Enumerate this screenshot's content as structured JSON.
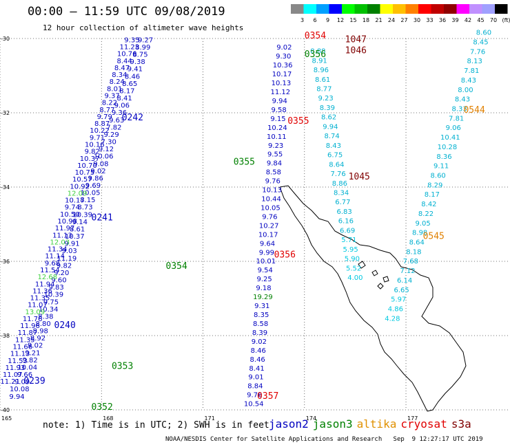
{
  "header": {
    "title": "00:00 – 11:59 UTC 09/08/2019",
    "subtitle": "12 hour collection of altimeter wave heights"
  },
  "colorbar": {
    "ticks": [
      "3",
      "6",
      "9",
      "12",
      "15",
      "18",
      "21",
      "24",
      "27",
      "30",
      "33",
      "36",
      "39",
      "42",
      "45",
      "70",
      "(ft)"
    ],
    "colors": [
      "#888888",
      "#00ffff",
      "#00a0ff",
      "#0000ff",
      "#00ff00",
      "#00c000",
      "#008000",
      "#ffff00",
      "#ffc000",
      "#ff8000",
      "#ff0000",
      "#c00000",
      "#900000",
      "#ff00ff",
      "#c090ff",
      "#a0a0ff",
      "#000000"
    ]
  },
  "axes": {
    "lat_labels": [
      "-30",
      "-32",
      "-34",
      "-36",
      "-38",
      "-40"
    ],
    "lon_labels": [
      "165",
      "168",
      "171",
      "174",
      "177"
    ]
  },
  "passes": [
    {
      "label": "0239",
      "color": "#0000c0",
      "lon": 165.7,
      "lat": -39.3
    },
    {
      "label": "0240",
      "color": "#0000c0",
      "lon": 166.6,
      "lat": -37.8
    },
    {
      "label": "0241",
      "color": "#0000c0",
      "lon": 167.7,
      "lat": -34.9
    },
    {
      "label": "0242",
      "color": "#0000c0",
      "lon": 168.6,
      "lat": -32.2
    },
    {
      "label": "0352",
      "color": "#008000",
      "lon": 167.7,
      "lat": -40.0
    },
    {
      "label": "0353",
      "color": "#008000",
      "lon": 168.3,
      "lat": -38.9
    },
    {
      "label": "0354",
      "color": "#008000",
      "lon": 169.9,
      "lat": -36.2
    },
    {
      "label": "0355",
      "color": "#008000",
      "lon": 171.9,
      "lat": -33.4
    },
    {
      "label": "0356",
      "color": "#008000",
      "lon": 174.0,
      "lat": -30.5
    },
    {
      "label": "0354",
      "color": "#e00000",
      "lon": 174.0,
      "lat": -30.0
    },
    {
      "label": "0355",
      "color": "#e00000",
      "lon": 173.5,
      "lat": -32.3
    },
    {
      "label": "0356",
      "color": "#e00000",
      "lon": 173.1,
      "lat": -35.9
    },
    {
      "label": "0357",
      "color": "#e00000",
      "lon": 172.6,
      "lat": -39.7
    },
    {
      "label": "1045",
      "color": "#800000",
      "lon": 175.3,
      "lat": -33.8
    },
    {
      "label": "1046",
      "color": "#800000",
      "lon": 175.2,
      "lat": -30.4
    },
    {
      "label": "1047",
      "color": "#800000",
      "lon": 175.2,
      "lat": -30.1
    },
    {
      "label": "0544",
      "color": "#e08000",
      "lon": 178.7,
      "lat": -32.0
    },
    {
      "label": "0545",
      "color": "#e08000",
      "lon": 177.5,
      "lat": -35.4
    }
  ],
  "tracks": [
    {
      "name": "jason2-0239-0242",
      "color": "#0000c0",
      "lon0": 165.5,
      "lat0": -39.7,
      "lon1": 169.3,
      "lat1": -30.1,
      "values": [
        "9.94",
        "10.08",
        "9.09",
        "9.66",
        "10.04",
        "9.82",
        "9.21",
        "9.02",
        "8.92",
        "8.98",
        "8.80",
        "8.38",
        "10.34",
        "9.75",
        "10.39",
        "9.83",
        "9.60",
        "9.20",
        "9.82",
        "11.19",
        "9.03",
        "9.91",
        "10.37",
        "8.61",
        "9.14",
        "10.39",
        "8.73",
        "8.15",
        "10.05",
        "9.69",
        "9.86",
        "9.02",
        "9.08",
        "10.06",
        "9.12",
        "7.30",
        "9.29",
        "7.82",
        "9.63",
        "9.36",
        "9.06",
        "8.41",
        "8.17",
        "8.65",
        "8.46",
        "9.41",
        "9.38",
        "8.75",
        "8.99",
        "9.27"
      ]
    },
    {
      "name": "jason2-left",
      "color": "#0000c0",
      "lon0": 165.3,
      "lat0": -39.3,
      "lon1": 168.9,
      "lat1": -30.1,
      "values": [
        "11.21",
        "11.07",
        "11.93",
        "11.53",
        "11.13",
        "11.66",
        "11.35",
        "11.87",
        "11.96",
        "11.76",
        "13.09",
        "11.07",
        "11.35",
        "11.36",
        "11.94",
        "12.68",
        "11.54",
        "9.68",
        "11.14",
        "11.34",
        "12.03",
        "11.13",
        "11.97",
        "10.98",
        "10.50",
        "9.74",
        "10.17",
        "12.09",
        "10.92",
        "10.57",
        "10.75",
        "10.70",
        "10.37",
        "9.82",
        "10.16",
        "9.71",
        "10.22",
        "8.87",
        "9.79",
        "8.77",
        "8.22",
        "9.37",
        "8.01",
        "8.24",
        "8.34",
        "8.47",
        "8.44",
        "10.76",
        "11.23",
        "9.35"
      ]
    },
    {
      "name": "jason2-center",
      "color": "#0000c0",
      "lon0": 172.5,
      "lat0": -39.9,
      "lon1": 173.4,
      "lat1": -30.3,
      "values": [
        "10.54",
        "9.76",
        "8.84",
        "9.01",
        "8.41",
        "8.46",
        "8.46",
        "9.02",
        "8.39",
        "8.58",
        "8.35",
        "9.31",
        "19.29",
        "9.18",
        "9.25",
        "9.54",
        "10.01",
        "9.99",
        "9.64",
        "10.17",
        "10.27",
        "9.76",
        "10.05",
        "10.44",
        "10.13",
        "9.76",
        "8.58",
        "9.84",
        "9.55",
        "9.23",
        "10.11",
        "10.24",
        "9.15",
        "9.58",
        "9.94",
        "11.12",
        "10.13",
        "10.17",
        "10.36",
        "9.30",
        "9.02"
      ]
    },
    {
      "name": "jason3-cyan",
      "color": "#00b0d0",
      "lon0": 175.5,
      "lat0": -36.5,
      "lon1": 174.4,
      "lat1": -30.4,
      "values": [
        "4.00",
        "5.52",
        "5.90",
        "5.95",
        "5.71",
        "6.69",
        "6.16",
        "6.83",
        "6.77",
        "8.34",
        "8.86",
        "7.76",
        "8.64",
        "6.75",
        "8.43",
        "8.74",
        "9.94",
        "8.62",
        "8.39",
        "9.23",
        "8.77",
        "8.61",
        "8.96",
        "8.91",
        "8.88"
      ]
    },
    {
      "name": "saral-cyan-right",
      "color": "#00b0d0",
      "lon0": 176.6,
      "lat0": -37.6,
      "lon1": 179.3,
      "lat1": -29.9,
      "values": [
        "4.28",
        "4.86",
        "5.97",
        "6.65",
        "6.14",
        "7.12",
        "7.68",
        "8.18",
        "8.64",
        "8.98",
        "9.05",
        "8.22",
        "8.42",
        "8.17",
        "8.29",
        "8.60",
        "9.11",
        "8.36",
        "10.28",
        "10.41",
        "9.06",
        "7.81",
        "8.33",
        "8.43",
        "8.00",
        "8.43",
        "7.81",
        "8.13",
        "7.76",
        "8.45",
        "8.60"
      ]
    }
  ],
  "note": "note: 1) Time is in UTC; 2) SWH is in feet",
  "legend": [
    {
      "label": "jason2",
      "color": "#0000c0"
    },
    {
      "label": "jason3",
      "color": "#008000"
    },
    {
      "label": "altika",
      "color": "#e09000"
    },
    {
      "label": "cryosat",
      "color": "#e00000"
    },
    {
      "label": "s3a",
      "color": "#800000"
    }
  ],
  "footer": "NOAA/NESDIS Center for Satellite Applications and Research   Sep  9 12:27:17 UTC 2019"
}
